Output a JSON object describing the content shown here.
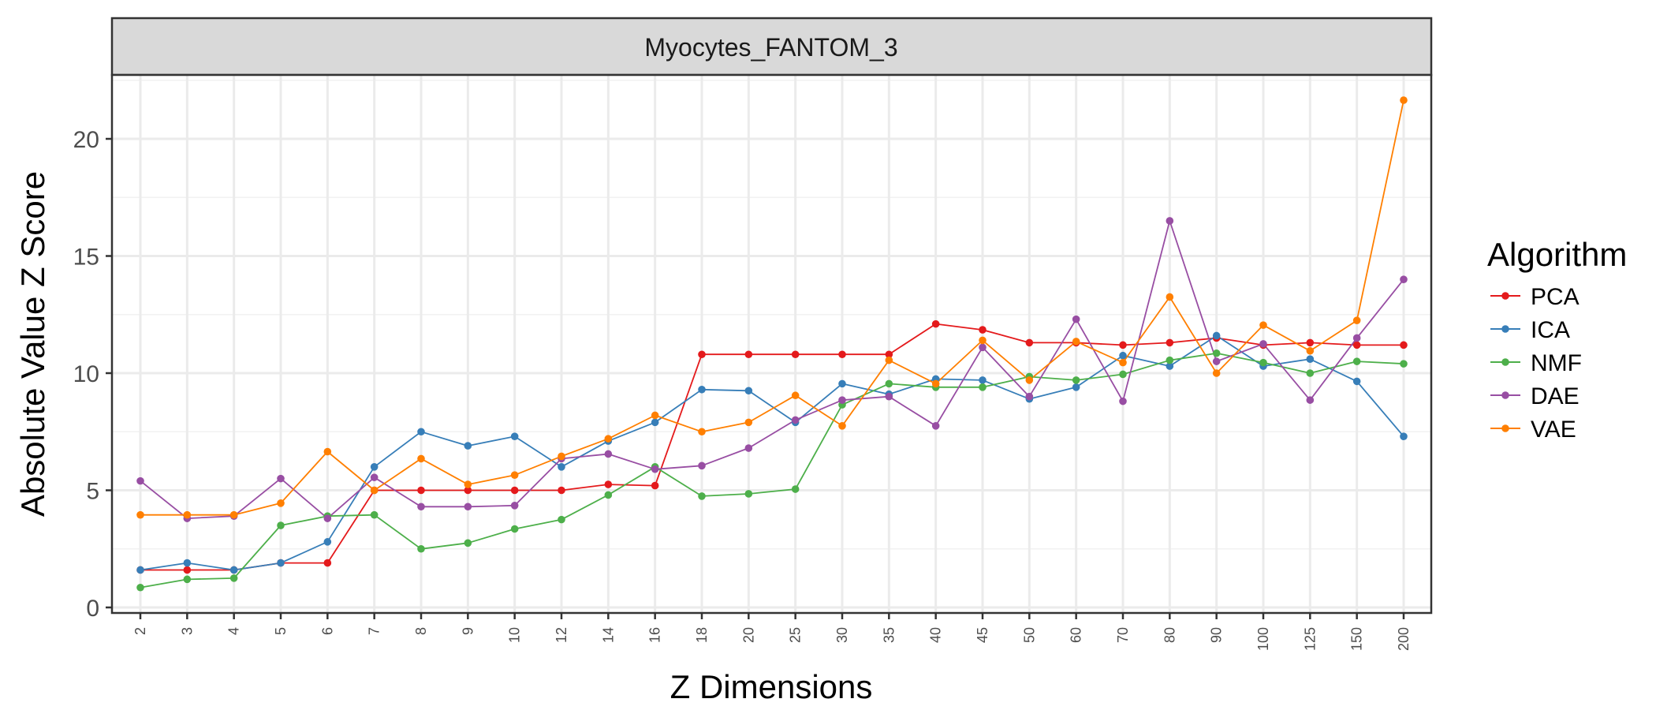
{
  "chart_data": {
    "type": "line",
    "facet_label": "Myocytes_FANTOM_3",
    "xlabel": "Z Dimensions",
    "ylabel": "Absolute Value Z Score",
    "categories": [
      "2",
      "3",
      "4",
      "5",
      "6",
      "7",
      "8",
      "9",
      "10",
      "12",
      "14",
      "16",
      "18",
      "20",
      "25",
      "30",
      "35",
      "40",
      "45",
      "50",
      "60",
      "70",
      "80",
      "90",
      "100",
      "125",
      "150",
      "200"
    ],
    "ylim": [
      0,
      23
    ],
    "yticks": [
      0,
      5,
      10,
      15,
      20
    ],
    "grid": true,
    "legend": {
      "title": "Algorithm",
      "position": "right"
    },
    "series": [
      {
        "name": "PCA",
        "color": "#e41a1c",
        "values": [
          1.6,
          1.6,
          1.6,
          1.9,
          1.9,
          5.0,
          5.0,
          5.0,
          5.0,
          5.0,
          5.25,
          5.2,
          10.8,
          10.8,
          10.8,
          10.8,
          10.8,
          12.1,
          11.85,
          11.3,
          11.3,
          11.2,
          11.3,
          11.5,
          11.2,
          11.3,
          11.2,
          11.2
        ]
      },
      {
        "name": "ICA",
        "color": "#377eb8",
        "values": [
          1.6,
          1.9,
          1.6,
          1.9,
          2.8,
          6.0,
          7.5,
          6.9,
          7.3,
          6.0,
          7.1,
          7.9,
          9.3,
          9.25,
          7.9,
          9.55,
          9.1,
          9.75,
          9.7,
          8.9,
          9.4,
          10.75,
          10.3,
          11.6,
          10.3,
          10.6,
          9.65,
          7.3
        ]
      },
      {
        "name": "NMF",
        "color": "#4daf4a",
        "values": [
          0.85,
          1.2,
          1.25,
          3.5,
          3.9,
          3.95,
          2.5,
          2.75,
          3.35,
          3.75,
          4.8,
          6.0,
          4.75,
          4.85,
          5.05,
          8.65,
          9.55,
          9.4,
          9.4,
          9.85,
          9.7,
          9.95,
          10.55,
          10.85,
          10.45,
          10.0,
          10.5,
          10.4
        ]
      },
      {
        "name": "DAE",
        "color": "#984ea3",
        "values": [
          5.4,
          3.8,
          3.9,
          5.5,
          3.8,
          5.55,
          4.3,
          4.3,
          4.35,
          6.35,
          6.55,
          5.9,
          6.05,
          6.8,
          8.0,
          8.85,
          9.0,
          7.75,
          11.1,
          9.0,
          12.3,
          8.8,
          16.5,
          10.5,
          11.25,
          8.85,
          11.5,
          14.0
        ]
      },
      {
        "name": "VAE",
        "color": "#ff7f00",
        "values": [
          3.95,
          3.95,
          3.95,
          4.45,
          6.65,
          5.0,
          6.35,
          5.25,
          5.65,
          6.45,
          7.2,
          8.2,
          7.5,
          7.9,
          9.05,
          7.75,
          10.55,
          9.55,
          11.4,
          9.7,
          11.35,
          10.45,
          13.25,
          10.0,
          12.05,
          10.95,
          12.25,
          21.65
        ]
      }
    ]
  }
}
